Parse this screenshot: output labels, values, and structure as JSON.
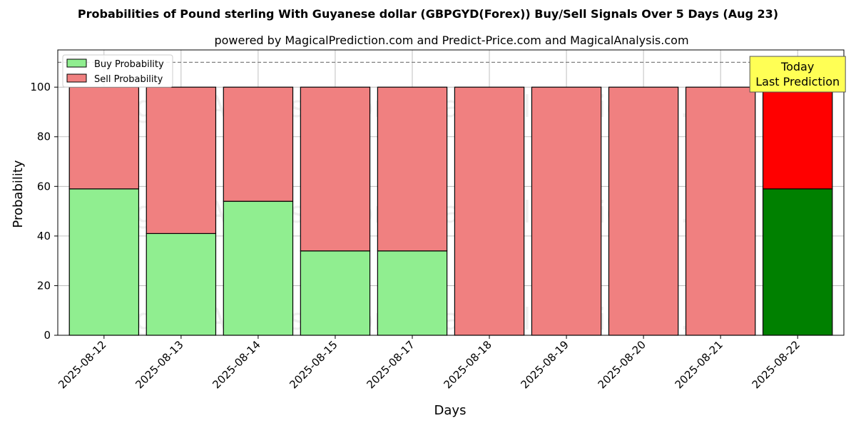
{
  "chart_data": {
    "type": "bar",
    "stacked": true,
    "title": "Probabilities of Pound sterling With Guyanese dollar (GBPGYD(Forex)) Buy/Sell Signals Over 5 Days (Aug 23)",
    "subtitle": "powered by MagicalPrediction.com and Predict-Price.com and MagicalAnalysis.com",
    "xlabel": "Days",
    "ylabel": "Probability",
    "ylim": [
      0,
      115
    ],
    "yticks": [
      0,
      20,
      40,
      60,
      80,
      100
    ],
    "grid": true,
    "legend_position": "top-left",
    "categories": [
      "2025-08-12",
      "2025-08-13",
      "2025-08-14",
      "2025-08-15",
      "2025-08-17",
      "2025-08-18",
      "2025-08-19",
      "2025-08-20",
      "2025-08-21",
      "2025-08-22"
    ],
    "series": [
      {
        "name": "Buy Probability",
        "values": [
          59,
          41,
          54,
          34,
          34,
          0,
          0,
          0,
          0,
          59
        ],
        "color": "#90ee90",
        "highlight_color": "#008000"
      },
      {
        "name": "Sell Probability",
        "values": [
          41,
          59,
          46,
          66,
          66,
          100,
          100,
          100,
          100,
          41
        ],
        "color": "#f08080",
        "highlight_color": "#ff0000"
      }
    ],
    "reference_line": {
      "y": 110,
      "style": "dashed",
      "color": "#808080"
    },
    "annotation": {
      "text_lines": [
        "Today",
        "Last Prediction"
      ],
      "category_index": 9,
      "background": "#ffff55"
    },
    "watermarks": [
      "MagicalAnalysis.com",
      "MagicalPrediction.com"
    ]
  }
}
